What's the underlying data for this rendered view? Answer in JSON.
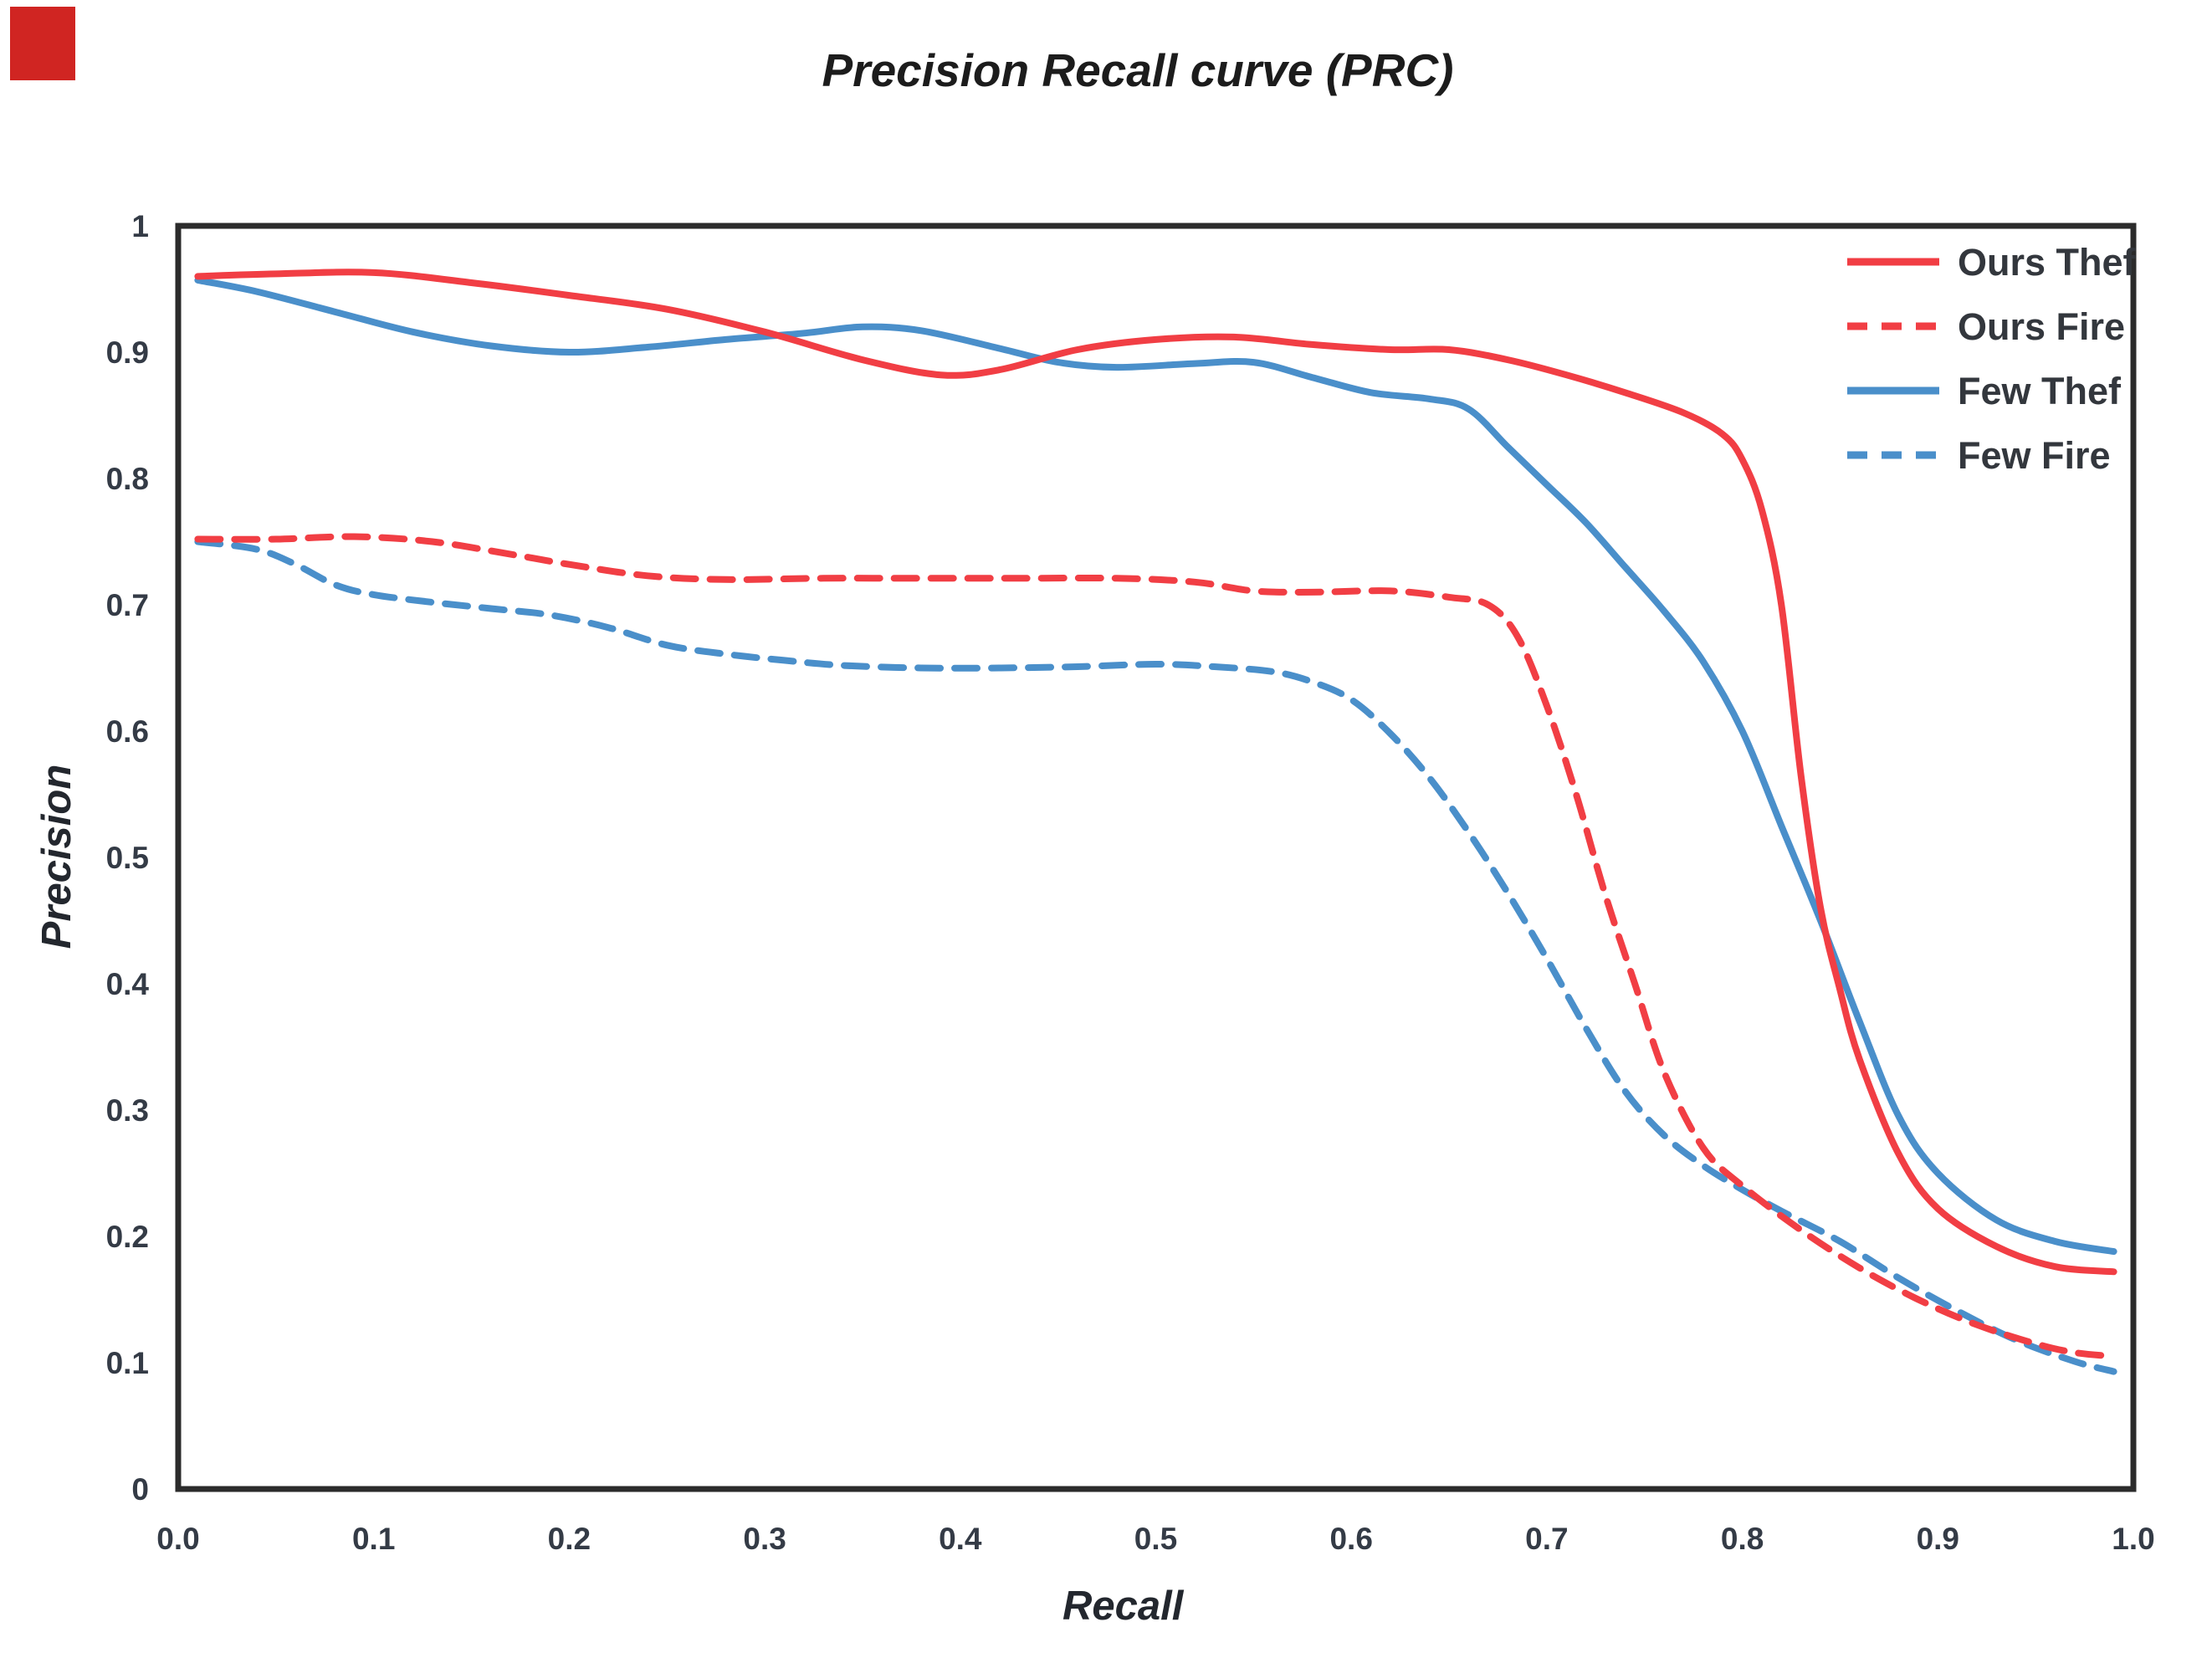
{
  "chart_data": {
    "type": "line",
    "title": "Precision Recall curve (PRC)",
    "xlabel": "Recall",
    "ylabel": "Precision",
    "xlim": [
      0.0,
      1.0
    ],
    "ylim": [
      0.0,
      1.0
    ],
    "grid": false,
    "legend_position": "top-right-inside",
    "x_ticks": [
      {
        "value": 0.0,
        "label": "0.0"
      },
      {
        "value": 0.1,
        "label": "0.1"
      },
      {
        "value": 0.2,
        "label": "0.2"
      },
      {
        "value": 0.3,
        "label": "0.3"
      },
      {
        "value": 0.4,
        "label": "0.4"
      },
      {
        "value": 0.5,
        "label": "0.5"
      },
      {
        "value": 0.6,
        "label": "0.6"
      },
      {
        "value": 0.7,
        "label": "0.7"
      },
      {
        "value": 0.8,
        "label": "0.8"
      },
      {
        "value": 0.9,
        "label": "0.9"
      },
      {
        "value": 1.0,
        "label": "1.0"
      }
    ],
    "y_ticks": [
      {
        "value": 0.0,
        "label": "0"
      },
      {
        "value": 0.1,
        "label": "0.1"
      },
      {
        "value": 0.2,
        "label": "0.2"
      },
      {
        "value": 0.3,
        "label": "0.3"
      },
      {
        "value": 0.4,
        "label": "0.4"
      },
      {
        "value": 0.5,
        "label": "0.5"
      },
      {
        "value": 0.6,
        "label": "0.6"
      },
      {
        "value": 0.7,
        "label": "0.7"
      },
      {
        "value": 0.8,
        "label": "0.8"
      },
      {
        "value": 0.9,
        "label": "0.9"
      },
      {
        "value": 1.0,
        "label": "1"
      }
    ],
    "series": [
      {
        "name": "Few Fire",
        "color": "#4a8fca",
        "style": "dashed",
        "points": [
          [
            0.01,
            0.75
          ],
          [
            0.04,
            0.744
          ],
          [
            0.06,
            0.732
          ],
          [
            0.08,
            0.716
          ],
          [
            0.1,
            0.708
          ],
          [
            0.13,
            0.702
          ],
          [
            0.16,
            0.697
          ],
          [
            0.19,
            0.692
          ],
          [
            0.22,
            0.682
          ],
          [
            0.25,
            0.668
          ],
          [
            0.28,
            0.661
          ],
          [
            0.31,
            0.656
          ],
          [
            0.34,
            0.652
          ],
          [
            0.38,
            0.65
          ],
          [
            0.42,
            0.65
          ],
          [
            0.46,
            0.651
          ],
          [
            0.5,
            0.653
          ],
          [
            0.53,
            0.651
          ],
          [
            0.56,
            0.647
          ],
          [
            0.58,
            0.639
          ],
          [
            0.6,
            0.625
          ],
          [
            0.62,
            0.598
          ],
          [
            0.64,
            0.563
          ],
          [
            0.66,
            0.52
          ],
          [
            0.68,
            0.472
          ],
          [
            0.7,
            0.42
          ],
          [
            0.72,
            0.365
          ],
          [
            0.74,
            0.315
          ],
          [
            0.76,
            0.28
          ],
          [
            0.78,
            0.256
          ],
          [
            0.8,
            0.237
          ],
          [
            0.82,
            0.22
          ],
          [
            0.85,
            0.196
          ],
          [
            0.88,
            0.167
          ],
          [
            0.91,
            0.141
          ],
          [
            0.94,
            0.118
          ],
          [
            0.97,
            0.101
          ],
          [
            0.99,
            0.093
          ]
        ]
      },
      {
        "name": "Ours Fire",
        "color": "#f13e44",
        "style": "dashed",
        "points": [
          [
            0.01,
            0.752
          ],
          [
            0.05,
            0.752
          ],
          [
            0.09,
            0.754
          ],
          [
            0.13,
            0.75
          ],
          [
            0.17,
            0.74
          ],
          [
            0.2,
            0.732
          ],
          [
            0.24,
            0.723
          ],
          [
            0.28,
            0.72
          ],
          [
            0.33,
            0.721
          ],
          [
            0.38,
            0.721
          ],
          [
            0.43,
            0.721
          ],
          [
            0.48,
            0.721
          ],
          [
            0.52,
            0.718
          ],
          [
            0.55,
            0.711
          ],
          [
            0.58,
            0.71
          ],
          [
            0.62,
            0.711
          ],
          [
            0.65,
            0.706
          ],
          [
            0.67,
            0.7
          ],
          [
            0.685,
            0.675
          ],
          [
            0.7,
            0.62
          ],
          [
            0.715,
            0.55
          ],
          [
            0.73,
            0.47
          ],
          [
            0.745,
            0.4
          ],
          [
            0.76,
            0.33
          ],
          [
            0.78,
            0.27
          ],
          [
            0.8,
            0.24
          ],
          [
            0.83,
            0.205
          ],
          [
            0.86,
            0.175
          ],
          [
            0.89,
            0.15
          ],
          [
            0.92,
            0.13
          ],
          [
            0.95,
            0.115
          ],
          [
            0.97,
            0.108
          ],
          [
            0.99,
            0.105
          ]
        ]
      },
      {
        "name": "Few Thef",
        "color": "#4a8fca",
        "style": "solid",
        "points": [
          [
            0.01,
            0.957
          ],
          [
            0.04,
            0.948
          ],
          [
            0.08,
            0.932
          ],
          [
            0.12,
            0.916
          ],
          [
            0.16,
            0.905
          ],
          [
            0.2,
            0.9
          ],
          [
            0.24,
            0.904
          ],
          [
            0.28,
            0.91
          ],
          [
            0.32,
            0.915
          ],
          [
            0.35,
            0.92
          ],
          [
            0.38,
            0.917
          ],
          [
            0.42,
            0.903
          ],
          [
            0.45,
            0.892
          ],
          [
            0.48,
            0.888
          ],
          [
            0.52,
            0.891
          ],
          [
            0.55,
            0.892
          ],
          [
            0.58,
            0.88
          ],
          [
            0.61,
            0.868
          ],
          [
            0.64,
            0.863
          ],
          [
            0.66,
            0.855
          ],
          [
            0.68,
            0.825
          ],
          [
            0.7,
            0.795
          ],
          [
            0.72,
            0.765
          ],
          [
            0.74,
            0.73
          ],
          [
            0.76,
            0.695
          ],
          [
            0.78,
            0.655
          ],
          [
            0.8,
            0.6
          ],
          [
            0.82,
            0.525
          ],
          [
            0.84,
            0.45
          ],
          [
            0.86,
            0.37
          ],
          [
            0.88,
            0.295
          ],
          [
            0.9,
            0.25
          ],
          [
            0.93,
            0.213
          ],
          [
            0.96,
            0.196
          ],
          [
            0.99,
            0.188
          ]
        ]
      },
      {
        "name": "Ours Thef",
        "color": "#f13e44",
        "style": "solid",
        "points": [
          [
            0.01,
            0.96
          ],
          [
            0.05,
            0.962
          ],
          [
            0.1,
            0.963
          ],
          [
            0.15,
            0.955
          ],
          [
            0.2,
            0.945
          ],
          [
            0.25,
            0.934
          ],
          [
            0.3,
            0.916
          ],
          [
            0.35,
            0.894
          ],
          [
            0.39,
            0.882
          ],
          [
            0.42,
            0.886
          ],
          [
            0.46,
            0.902
          ],
          [
            0.5,
            0.91
          ],
          [
            0.54,
            0.912
          ],
          [
            0.58,
            0.906
          ],
          [
            0.62,
            0.902
          ],
          [
            0.65,
            0.902
          ],
          [
            0.68,
            0.894
          ],
          [
            0.71,
            0.882
          ],
          [
            0.74,
            0.868
          ],
          [
            0.77,
            0.852
          ],
          [
            0.79,
            0.835
          ],
          [
            0.8,
            0.815
          ],
          [
            0.81,
            0.775
          ],
          [
            0.82,
            0.7
          ],
          [
            0.83,
            0.565
          ],
          [
            0.84,
            0.46
          ],
          [
            0.85,
            0.395
          ],
          [
            0.86,
            0.34
          ],
          [
            0.88,
            0.265
          ],
          [
            0.9,
            0.222
          ],
          [
            0.93,
            0.192
          ],
          [
            0.96,
            0.176
          ],
          [
            0.99,
            0.172
          ]
        ]
      }
    ],
    "legend": [
      {
        "label": "Ours Thef",
        "color": "#f13e44",
        "style": "solid"
      },
      {
        "label": "Ours Fire",
        "color": "#f13e44",
        "style": "dashed"
      },
      {
        "label": "Few Thef",
        "color": "#4a8fca",
        "style": "solid"
      },
      {
        "label": "Few Fire",
        "color": "#4a8fca",
        "style": "dashed"
      }
    ],
    "frame_color": "#2b2b2b",
    "corner_marker_color": "#d02522"
  }
}
